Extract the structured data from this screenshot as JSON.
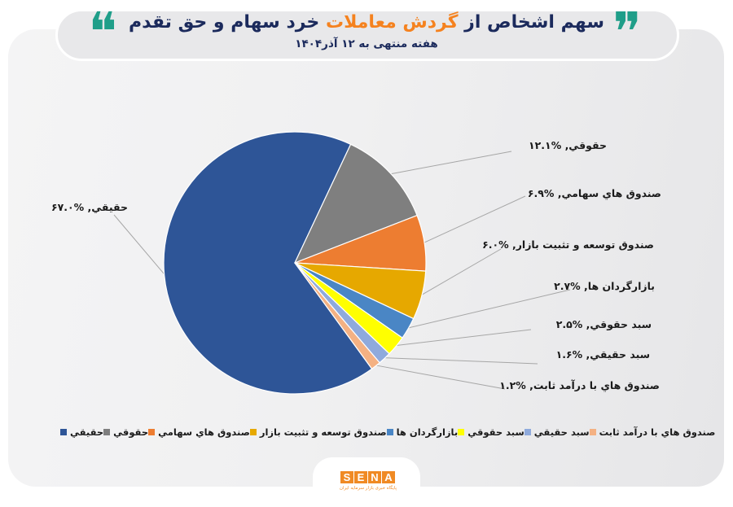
{
  "header": {
    "title_part1": "سهم اشخاص از",
    "title_highlight": "گردش معاملات",
    "title_part2": "خرد سهام و حق تقدم",
    "subtitle": "هفته منتهی به ۱۲ آذر۱۴۰۴",
    "open_quote_icon": "❝",
    "close_quote_icon": "❞"
  },
  "colors": {
    "title": "#1b2a5c",
    "highlight": "#f5821f",
    "quote": "#1f9e89",
    "brand": "#f08a24",
    "leader_line": "#a6a6a6"
  },
  "chart_data": {
    "type": "pie",
    "title": "سهم اشخاص از گردش معاملات خرد سهام و حق تقدم",
    "subtitle": "هفته منتهی به ۱۲ آذر۱۴۰۴",
    "categories": [
      "حقيقي",
      "حقوقي",
      "صندوق هاي سهامي",
      "صندوق توسعه و تثبيت بازار",
      "بازارگردان ها",
      "سبد حقوقي",
      "سبد حقيقي",
      "صندوق هاي با درآمد ثابت"
    ],
    "values": [
      67.0,
      12.1,
      6.9,
      6.0,
      2.7,
      2.5,
      1.6,
      1.2
    ],
    "unit": "%",
    "colors": [
      "#2e5597",
      "#7f7f7f",
      "#ed7d31",
      "#e6a800",
      "#4a86c5",
      "#ffff00",
      "#8faadc",
      "#f4b183"
    ],
    "data_labels": [
      "حقيقي, %۶۷.۰",
      "حقوقي, %۱۲.۱",
      "صندوق هاي سهامي, %۶.۹",
      "صندوق توسعه و تثبيت بازار, %۶.۰",
      "بازارگردان ها, %۲.۷",
      "سبد حقوقي, %۲.۵",
      "سبد حقيقي, %۱.۶",
      "صندوق هاي با درآمد ثابت, %۱.۲"
    ],
    "legend": [
      "حقيقي",
      "حقوقي",
      "صندوق هاي سهامي",
      "صندوق توسعه و تثبيت بازار",
      "بازارگردان ها",
      "سبد حقوقي",
      "سبد حقيقي",
      "صندوق هاي با درآمد ثابت"
    ],
    "legend_position": "bottom",
    "start_angle_deg": 144,
    "direction": "clockwise"
  },
  "footer": {
    "logo_letters": [
      "S",
      "E",
      "N",
      "A"
    ],
    "logo_caption": "پایگاه خبری بازار سرمایه ایران"
  }
}
